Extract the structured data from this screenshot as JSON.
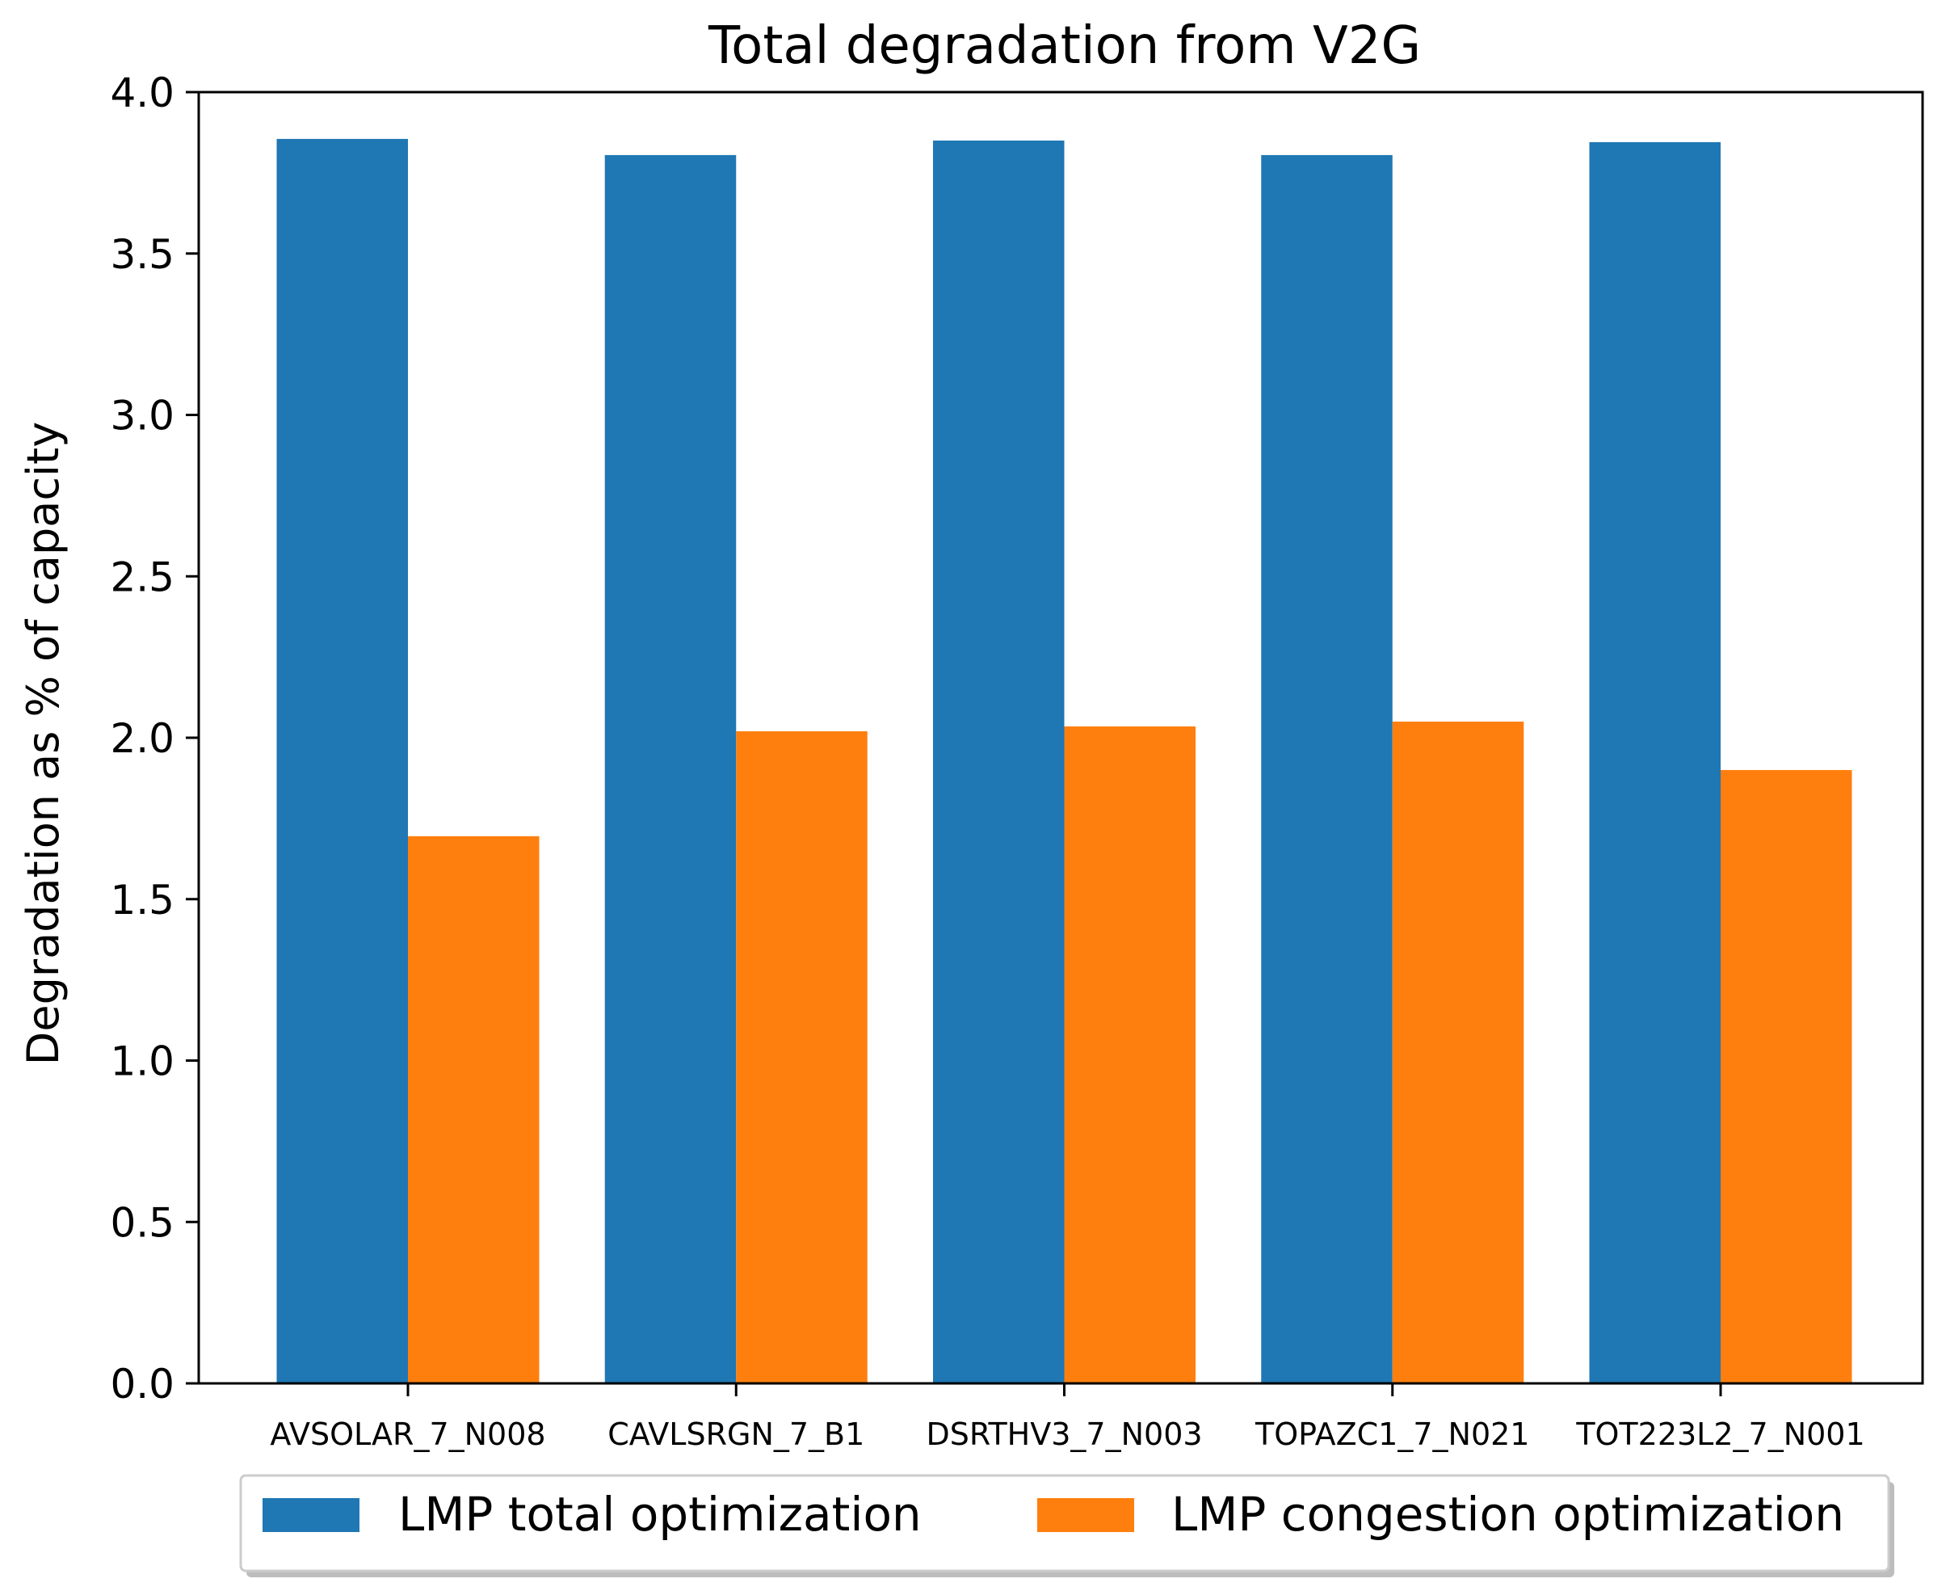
{
  "chart_data": {
    "type": "bar",
    "title": "Total degradation from V2G",
    "xlabel": "",
    "ylabel": "Degradation as % of capacity",
    "ylim": [
      0,
      4.0
    ],
    "yticks": [
      0.0,
      0.5,
      1.0,
      1.5,
      2.0,
      2.5,
      3.0,
      3.5,
      4.0
    ],
    "ytick_labels": [
      "0.0",
      "0.5",
      "1.0",
      "1.5",
      "2.0",
      "2.5",
      "3.0",
      "3.5",
      "4.0"
    ],
    "categories": [
      "AVSOLAR_7_N008",
      "CAVLSRGN_7_B1",
      "DSRTHV3_7_N003",
      "TOPAZC1_7_N021",
      "TOT223L2_7_N001"
    ],
    "series": [
      {
        "name": "LMP total optimization",
        "color": "#1f77b4",
        "values": [
          3.855,
          3.805,
          3.85,
          3.805,
          3.845
        ]
      },
      {
        "name": "LMP congestion optimization",
        "color": "#ff7f0e",
        "values": [
          1.695,
          2.02,
          2.035,
          2.05,
          1.9
        ]
      }
    ],
    "legend_position": "bottom-center",
    "grid": false
  }
}
